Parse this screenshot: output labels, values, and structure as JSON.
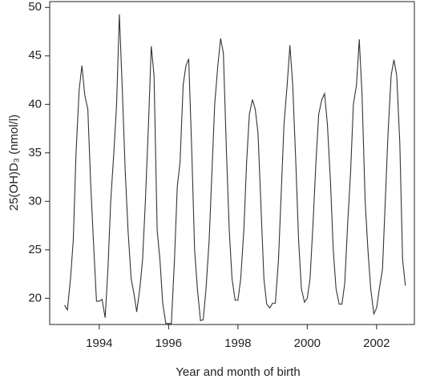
{
  "chart_data": {
    "type": "line",
    "x_label": "Year and month of birth",
    "y_label": "25(OH)D₃ (nmol/l)",
    "xlim": [
      1992.57,
      2003.09
    ],
    "xticks": [
      1994,
      1996,
      1998,
      2000,
      2002
    ],
    "ylim": [
      17.3,
      50.6
    ],
    "yticks": [
      20,
      25,
      30,
      35,
      40,
      45,
      50
    ],
    "grid": false,
    "series": [
      {
        "color": "#333333",
        "x": [
          1993.0,
          1993.08,
          1993.17,
          1993.25,
          1993.33,
          1993.42,
          1993.5,
          1993.58,
          1993.67,
          1993.75,
          1993.83,
          1993.92,
          1994.0,
          1994.08,
          1994.17,
          1994.25,
          1994.33,
          1994.42,
          1994.5,
          1994.58,
          1994.67,
          1994.75,
          1994.83,
          1994.92,
          1995.0,
          1995.08,
          1995.17,
          1995.25,
          1995.33,
          1995.42,
          1995.5,
          1995.58,
          1995.67,
          1995.75,
          1995.83,
          1995.92,
          1996.0,
          1996.08,
          1996.17,
          1996.25,
          1996.33,
          1996.42,
          1996.5,
          1996.58,
          1996.67,
          1996.75,
          1996.83,
          1996.92,
          1997.0,
          1997.08,
          1997.17,
          1997.25,
          1997.33,
          1997.42,
          1997.5,
          1997.58,
          1997.67,
          1997.75,
          1997.83,
          1997.92,
          1998.0,
          1998.08,
          1998.17,
          1998.25,
          1998.33,
          1998.42,
          1998.5,
          1998.58,
          1998.67,
          1998.75,
          1998.83,
          1998.92,
          1999.0,
          1999.08,
          1999.17,
          1999.25,
          1999.33,
          1999.42,
          1999.5,
          1999.58,
          1999.67,
          1999.75,
          1999.83,
          1999.92,
          2000.0,
          2000.08,
          2000.17,
          2000.25,
          2000.33,
          2000.42,
          2000.5,
          2000.58,
          2000.67,
          2000.75,
          2000.83,
          2000.92,
          2001.0,
          2001.08,
          2001.17,
          2001.25,
          2001.33,
          2001.42,
          2001.5,
          2001.58,
          2001.67,
          2001.75,
          2001.83,
          2001.92,
          2002.0,
          2002.08,
          2002.17,
          2002.25,
          2002.33,
          2002.42,
          2002.5,
          2002.58,
          2002.67,
          2002.75,
          2002.83
        ],
        "values": [
          19.3,
          18.8,
          22,
          26,
          35,
          41.5,
          44,
          41,
          39.5,
          32,
          26,
          19.7,
          19.7,
          19.9,
          18,
          23,
          30,
          35,
          40,
          49.3,
          41,
          33,
          27,
          22,
          20.5,
          18.6,
          21,
          24,
          30,
          38,
          46,
          43,
          27,
          24,
          19.5,
          17.4,
          17.4,
          17.4,
          24,
          31.5,
          34,
          42,
          44,
          44.7,
          35,
          25,
          21,
          17.7,
          17.8,
          21,
          26,
          33,
          40,
          44,
          46.8,
          45.3,
          35,
          27,
          22,
          19.8,
          19.8,
          22,
          27,
          34,
          39,
          40.5,
          39.5,
          37,
          29,
          22,
          19.4,
          19.0,
          19.5,
          19.5,
          24,
          31,
          38,
          42,
          46.1,
          42,
          34,
          26,
          21,
          19.6,
          20,
          22,
          28,
          34,
          39,
          40.5,
          41.1,
          38,
          32,
          25,
          21,
          19.4,
          19.4,
          21.5,
          28,
          33,
          40,
          42,
          46.7,
          41,
          30,
          25,
          21,
          18.4,
          19,
          21,
          23,
          30,
          37,
          43,
          44.6,
          43,
          36,
          24,
          21.3
        ]
      }
    ]
  }
}
